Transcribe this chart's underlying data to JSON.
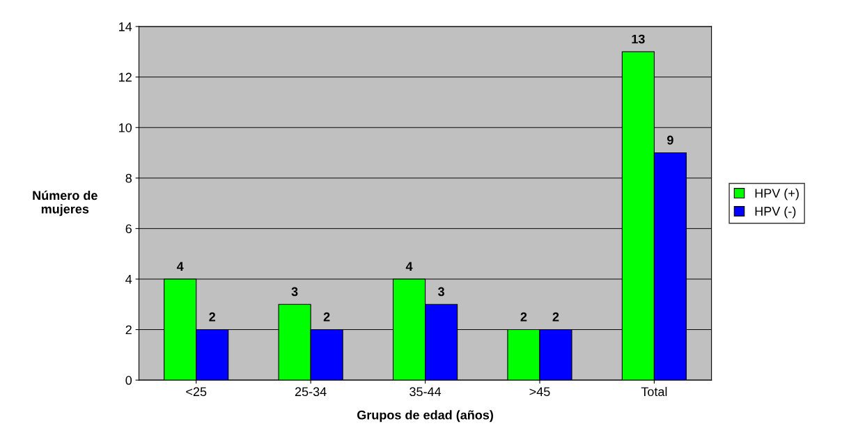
{
  "chart_data": {
    "type": "bar",
    "xlabel": "Grupos de edad (años)",
    "ylabel": "Número de\nmujeres",
    "categories": [
      "<25",
      "25-34",
      "35-44",
      ">45",
      "Total"
    ],
    "series": [
      {
        "name": "HPV (+)",
        "color": "#00ff00",
        "values": [
          4,
          3,
          4,
          2,
          13
        ]
      },
      {
        "name": "HPV (-)",
        "color": "#0000ff",
        "values": [
          2,
          2,
          3,
          2,
          9
        ]
      }
    ],
    "ylim": [
      0,
      14
    ],
    "yticks": [
      0,
      2,
      4,
      6,
      8,
      10,
      12,
      14
    ],
    "grid": "y",
    "legend": "right",
    "data_labels": true
  }
}
